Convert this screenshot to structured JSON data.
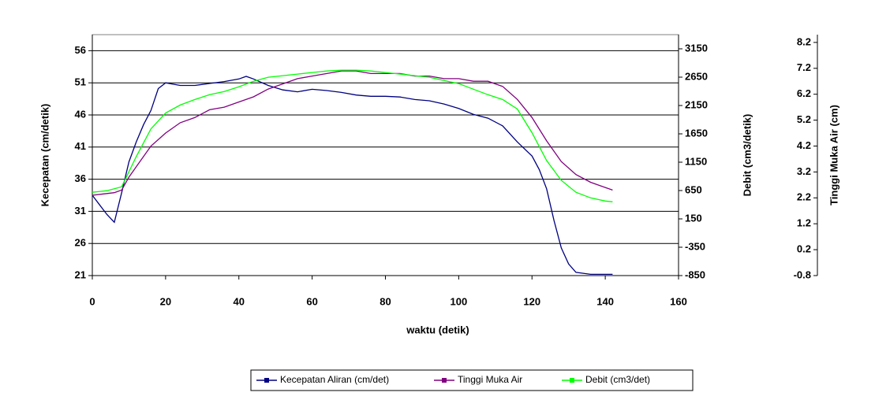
{
  "chart_data": {
    "type": "line",
    "xlabel": "waktu (detik)",
    "ylabel": "Kecepatan (cm/detik)",
    "y2label": "Debit (cm3/detik)",
    "y3label": "Tinggi Muka Air (cm)",
    "xlim": [
      0,
      160
    ],
    "xticks": [
      0,
      20,
      40,
      60,
      80,
      100,
      120,
      140,
      160
    ],
    "ylim": [
      21,
      58.5
    ],
    "yticks": [
      21,
      26,
      31,
      36,
      41,
      46,
      51,
      56
    ],
    "y2lim": [
      -850,
      3400
    ],
    "y2ticks": [
      -850,
      -350,
      150,
      650,
      1150,
      1650,
      2150,
      2650,
      3150
    ],
    "y3lim": [
      -0.8,
      8.5
    ],
    "y3ticks": [
      -0.8,
      0.2,
      1.2,
      2.2,
      3.2,
      4.2,
      5.2,
      6.2,
      7.2,
      8.2
    ],
    "grid": true,
    "legend": "bottom",
    "series": [
      {
        "name": "Kecepatan Aliran (cm/det)",
        "color": "#000080",
        "axis": "y",
        "x": [
          0,
          4,
          6,
          8,
          10,
          12,
          14,
          16,
          18,
          20,
          24,
          28,
          32,
          36,
          40,
          42,
          44,
          48,
          52,
          56,
          60,
          64,
          68,
          72,
          76,
          80,
          84,
          88,
          92,
          96,
          100,
          104,
          108,
          112,
          116,
          120,
          122,
          124,
          126,
          128,
          130,
          132,
          136,
          140,
          142
        ],
        "values": [
          33.5,
          30.5,
          29.3,
          33.9,
          38.7,
          41.8,
          44.5,
          46.7,
          50.1,
          51,
          50.6,
          50.6,
          50.9,
          51.2,
          51.6,
          52,
          51.6,
          50.6,
          49.9,
          49.6,
          50,
          49.8,
          49.5,
          49.1,
          48.9,
          48.9,
          48.8,
          48.4,
          48.2,
          47.7,
          47,
          46.1,
          45.5,
          44.3,
          41.8,
          39.6,
          37.5,
          34.5,
          29.6,
          25.3,
          22.8,
          21.5,
          21.2,
          21.2,
          21.2
        ]
      },
      {
        "name": "Tinggi Muka Air",
        "color": "#800080",
        "axis": "y3",
        "x": [
          0,
          6,
          8,
          10,
          12,
          16,
          20,
          24,
          28,
          32,
          36,
          40,
          44,
          48,
          52,
          56,
          60,
          64,
          68,
          72,
          76,
          80,
          84,
          88,
          92,
          96,
          100,
          104,
          108,
          112,
          116,
          120,
          124,
          128,
          132,
          136,
          140,
          142
        ],
        "values": [
          2.3,
          2.4,
          2.5,
          3,
          3.4,
          4.2,
          4.7,
          5.1,
          5.3,
          5.6,
          5.7,
          5.9,
          6.1,
          6.4,
          6.6,
          6.8,
          6.9,
          7,
          7.1,
          7.1,
          7,
          7,
          7,
          6.9,
          6.9,
          6.8,
          6.8,
          6.7,
          6.7,
          6.5,
          6,
          5.3,
          4.4,
          3.6,
          3.1,
          2.8,
          2.6,
          2.5
        ]
      },
      {
        "name": "Debit (cm3/det)",
        "color": "#00ff00",
        "axis": "y2",
        "x": [
          0,
          4,
          8,
          12,
          16,
          20,
          24,
          28,
          32,
          36,
          40,
          44,
          48,
          52,
          56,
          60,
          64,
          68,
          72,
          76,
          80,
          84,
          88,
          92,
          96,
          100,
          104,
          108,
          112,
          116,
          120,
          124,
          128,
          132,
          136,
          140,
          142
        ],
        "values": [
          619,
          647,
          717,
          1249,
          1738,
          2018,
          2158,
          2256,
          2340,
          2396,
          2480,
          2578,
          2648,
          2676,
          2704,
          2732,
          2760,
          2774,
          2774,
          2760,
          2732,
          2704,
          2676,
          2648,
          2592,
          2536,
          2438,
          2340,
          2256,
          2088,
          1669,
          1179,
          829,
          619,
          521,
          465,
          451
        ]
      }
    ]
  }
}
